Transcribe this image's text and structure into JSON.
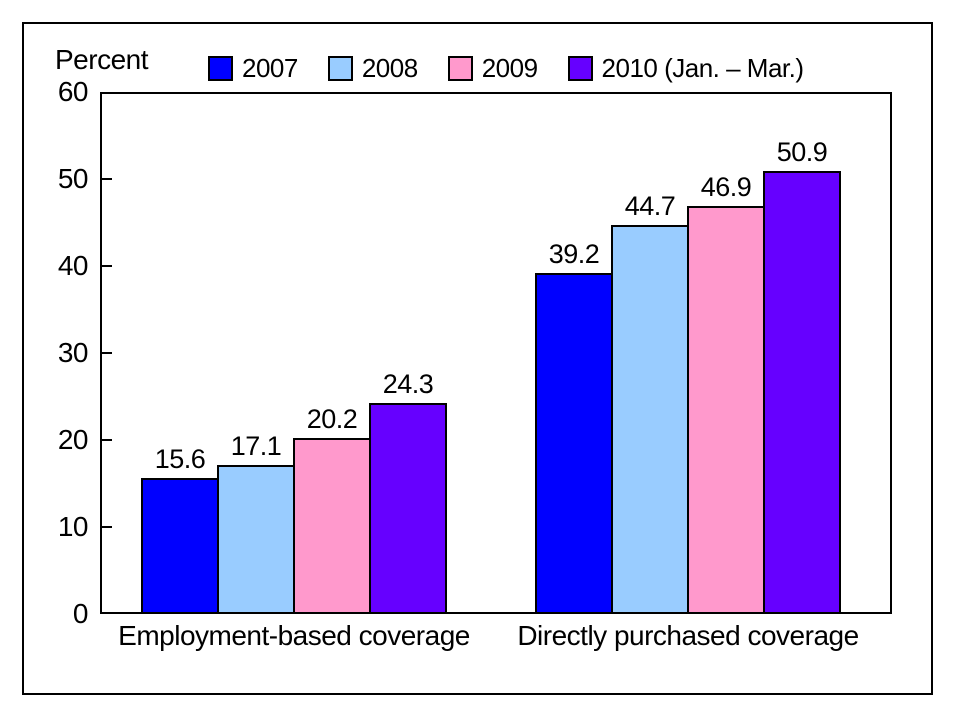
{
  "chart_data": {
    "type": "bar",
    "y_axis_title": "Percent",
    "categories": [
      "Employment-based coverage",
      "Directly purchased coverage"
    ],
    "series": [
      {
        "name": "2007",
        "color": "#0000FF",
        "values": [
          15.6,
          39.2
        ]
      },
      {
        "name": "2008",
        "color": "#99CCFF",
        "values": [
          17.1,
          44.7
        ]
      },
      {
        "name": "2009",
        "color": "#FF99CC",
        "values": [
          20.2,
          46.9
        ]
      },
      {
        "name": "2010 (Jan. – Mar.)",
        "color": "#6600FF",
        "values": [
          24.3,
          50.9
        ]
      }
    ],
    "ylim": [
      0,
      60
    ],
    "yticks": [
      0,
      10,
      20,
      30,
      40,
      50,
      60
    ],
    "grid": false,
    "legend_position": "top",
    "bar_outline_color": "#000000",
    "value_labels": true
  }
}
